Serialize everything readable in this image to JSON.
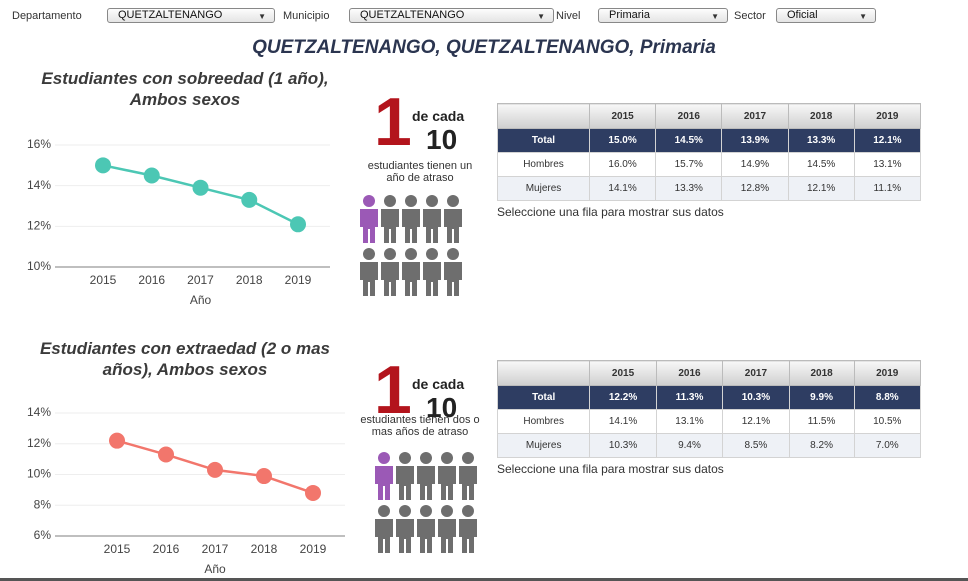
{
  "filters": [
    {
      "label": "Departamento",
      "value": "QUETZALTENANGO"
    },
    {
      "label": "Municipio",
      "value": "QUETZALTENANGO"
    },
    {
      "label": "Nivel",
      "value": "Primaria"
    },
    {
      "label": "Sector",
      "value": "Oficial"
    }
  ],
  "header": {
    "title": "QUETZALTENANGO, QUETZALTENANGO, Primaria"
  },
  "chart_data": [
    {
      "type": "line",
      "title": "Estudiantes con sobreedad (1 año), Ambos sexos",
      "x_label": "Año",
      "categories": [
        "2015",
        "2016",
        "2017",
        "2018",
        "2019"
      ],
      "values": [
        15.0,
        14.5,
        13.9,
        13.3,
        12.1
      ],
      "color": "#4cc7b4",
      "ylim": [
        10,
        16
      ],
      "yticks": [
        {
          "value": 10,
          "label": "10%"
        },
        {
          "value": 12,
          "label": "12%"
        },
        {
          "value": 14,
          "label": "14%"
        },
        {
          "value": 16,
          "label": "16%"
        }
      ],
      "grid": true
    },
    {
      "type": "line",
      "title": "Estudiantes con extraedad (2 o mas años), Ambos sexos",
      "x_label": "Año",
      "categories": [
        "2015",
        "2016",
        "2017",
        "2018",
        "2019"
      ],
      "values": [
        12.2,
        11.3,
        10.3,
        9.9,
        8.8
      ],
      "color": "#f2766c",
      "ylim": [
        6,
        14
      ],
      "yticks": [
        {
          "value": 6,
          "label": "6%"
        },
        {
          "value": 8,
          "label": "8%"
        },
        {
          "value": 10,
          "label": "10%"
        },
        {
          "value": 12,
          "label": "12%"
        },
        {
          "value": 14,
          "label": "14%"
        }
      ],
      "grid": true
    }
  ],
  "panels": [
    {
      "one": "1",
      "de_cada": "de cada",
      "ten": "10",
      "text": "estudiantes tienen un año de atraso",
      "table": {
        "columns": [
          "2015",
          "2016",
          "2017",
          "2018",
          "2019"
        ],
        "rows": [
          [
            "Total",
            "15.0%",
            "14.5%",
            "13.9%",
            "13.3%",
            "12.1%"
          ],
          [
            "Hombres",
            "16.0%",
            "15.7%",
            "14.9%",
            "14.5%",
            "13.1%"
          ],
          [
            "Mujeres",
            "14.1%",
            "13.3%",
            "12.8%",
            "12.1%",
            "11.1%"
          ]
        ]
      },
      "note": "Seleccione una fila para mostrar sus datos"
    },
    {
      "one": "1",
      "de_cada": "de cada",
      "ten": "10",
      "text": "estudiantes tienen dos o mas años de atraso",
      "table": {
        "columns": [
          "2015",
          "2016",
          "2017",
          "2018",
          "2019"
        ],
        "rows": [
          [
            "Total",
            "12.2%",
            "11.3%",
            "10.3%",
            "9.9%",
            "8.8%"
          ],
          [
            "Hombres",
            "14.1%",
            "13.1%",
            "12.1%",
            "11.5%",
            "10.5%"
          ],
          [
            "Mujeres",
            "10.3%",
            "9.4%",
            "8.5%",
            "8.2%",
            "7.0%"
          ]
        ]
      },
      "note": "Seleccione una fila para mostrar sus datos"
    }
  ]
}
